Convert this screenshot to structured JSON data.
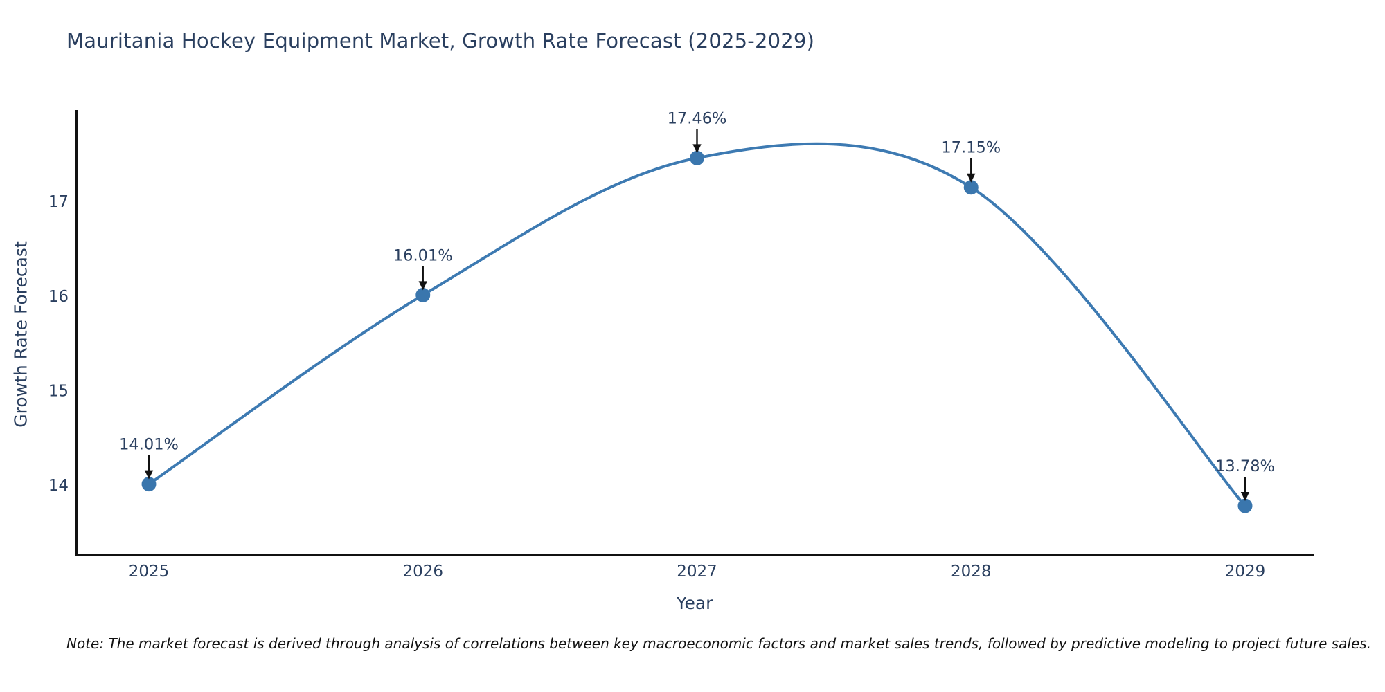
{
  "title": "Mauritania Hockey Equipment Market, Growth Rate Forecast (2025-2029)",
  "note": "Note: The market forecast is derived through analysis of correlations between key macroeconomic factors and market sales trends, followed by predictive modeling to project future sales.",
  "chart_data": {
    "type": "line",
    "title": "Mauritania Hockey Equipment Market, Growth Rate Forecast (2025-2029)",
    "xlabel": "Year",
    "ylabel": "Growth Rate Forecast",
    "categories": [
      "2025",
      "2026",
      "2027",
      "2028",
      "2029"
    ],
    "values": [
      14.01,
      16.01,
      17.46,
      17.15,
      13.78
    ],
    "point_labels": [
      "14.01%",
      "16.01%",
      "17.46%",
      "17.15%",
      "13.78%"
    ],
    "yticks": [
      14,
      15,
      16,
      17
    ],
    "ylim": [
      13.26,
      17.96
    ],
    "line_shape": "spline",
    "grid": false,
    "legend": "none",
    "annotations_style": "label-above-with-down-arrow"
  },
  "colors": {
    "line": "#3d7ab2",
    "marker": "#3a76ad",
    "text": "#2a3f5f",
    "axis": "#111111",
    "arrow": "#111111",
    "note_text": "#111111",
    "background": "#ffffff"
  }
}
